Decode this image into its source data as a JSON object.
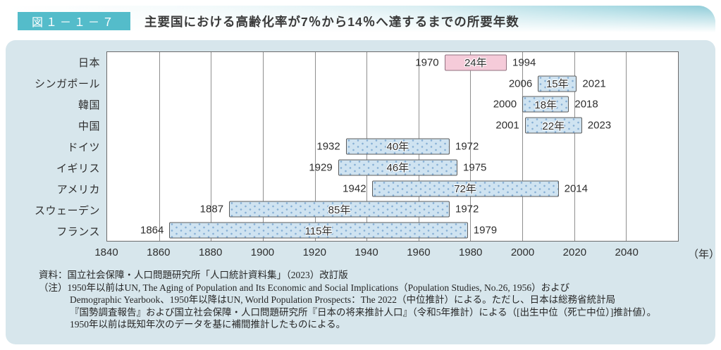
{
  "header": {
    "figure_label": "図１－１－７",
    "title": "主要国における高齢化率が7％から14％へ達するまでの所要年数"
  },
  "chart_data": {
    "type": "bar",
    "subtype": "horizontal-range",
    "title": "主要国における高齢化率が7％から14％へ達するまでの所要年数",
    "x_min": 1840,
    "x_max": 2060,
    "x_ticks": [
      1840,
      1860,
      1880,
      1900,
      1920,
      1940,
      1960,
      1980,
      2000,
      2020,
      2040
    ],
    "x_unit": "（年）",
    "grid": true,
    "rows": [
      {
        "country": "日本",
        "start": 1970,
        "end": 1994,
        "duration_label": "24年",
        "highlight": true
      },
      {
        "country": "シンガポール",
        "start": 2006,
        "end": 2021,
        "duration_label": "15年",
        "highlight": false
      },
      {
        "country": "韓国",
        "start": 2000,
        "end": 2018,
        "duration_label": "18年",
        "highlight": false
      },
      {
        "country": "中国",
        "start": 2001,
        "end": 2023,
        "duration_label": "22年",
        "highlight": false
      },
      {
        "country": "ドイツ",
        "start": 1932,
        "end": 1972,
        "duration_label": "40年",
        "highlight": false
      },
      {
        "country": "イギリス",
        "start": 1929,
        "end": 1975,
        "duration_label": "46年",
        "highlight": false
      },
      {
        "country": "アメリカ",
        "start": 1942,
        "end": 2014,
        "duration_label": "72年",
        "highlight": false
      },
      {
        "country": "スウェーデン",
        "start": 1887,
        "end": 1972,
        "duration_label": "85年",
        "highlight": false
      },
      {
        "country": "フランス",
        "start": 1864,
        "end": 1979,
        "duration_label": "115年",
        "highlight": false
      }
    ],
    "colors": {
      "accent_teal": "#54bcca",
      "panel_bg": "#d7e6ec",
      "bar_fill": "#cfe3f1",
      "bar_dot": "#86aed4",
      "bar_border": "#5c5c5c",
      "highlight_fill": "#f5cbd9",
      "highlight_border": "#91707f",
      "gridline": "#8f8f8f"
    }
  },
  "footer": {
    "source": "資料：国立社会保障・人口問題研究所「人口統計資料集」（2023）改訂版",
    "note_lines": [
      "（注）1950年以前はUN, The Aging of Population and Its Economic and Social Implications（Population Studies, No.26, 1956）および",
      "Demographic Yearbook、1950年以降はUN, World Population Prospects：The 2022（中位推計）による。ただし、日本は総務省統計局",
      "『国勢調査報告』および国立社会保障・人口問題研究所『日本の将来推計人口』（令和5年推計）による（[出生中位（死亡中位）]推計値）。",
      "1950年以前は既知年次のデータを基に補間推計したものによる。"
    ]
  }
}
